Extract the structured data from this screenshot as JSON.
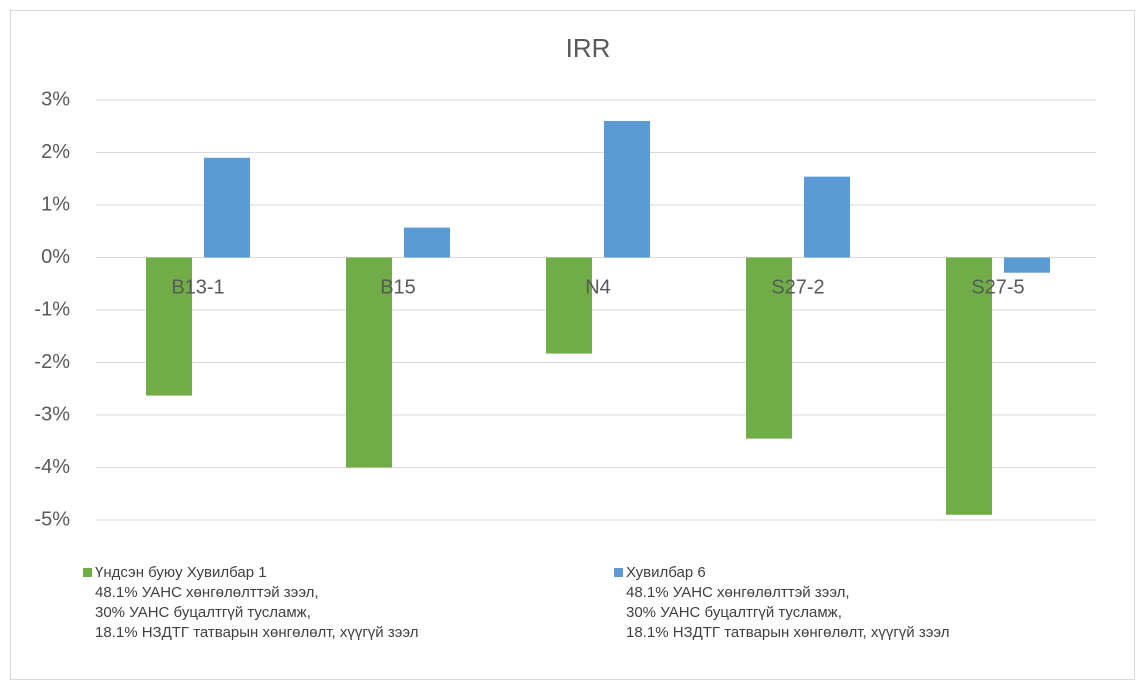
{
  "chart_data": {
    "type": "bar",
    "title": "IRR",
    "categories": [
      "B13-1",
      "B15",
      "N4",
      "S27-2",
      "S27-5"
    ],
    "series": [
      {
        "name": "Үндсэн буюу Хувилбар 1\n48.1% УАНС хөнгөлөлттэй зээл,\n30% УАНС буцалтгүй тусламж,\n18.1%  НЗДТГ татварын хөнгөлөлт, хүүгүй зээл",
        "color": "#70ad47",
        "values": [
          -2.63,
          -4.0,
          -1.83,
          -3.45,
          -4.9
        ]
      },
      {
        "name": "Хувилбар 6\n48.1% УАНС хөнгөлөлттэй зээл,\n30% УАНС буцалтгүй тусламж,\n18.1%  НЗДТГ татварын хөнгөлөлт, хүүгүй зээл",
        "color": "#5b9bd5",
        "values": [
          1.9,
          0.57,
          2.6,
          1.54,
          -0.29
        ]
      }
    ],
    "ylim": [
      -5,
      3
    ],
    "yticks": [
      {
        "value": -5,
        "label": "-5%"
      },
      {
        "value": -4,
        "label": "-4%"
      },
      {
        "value": -3,
        "label": "-3%"
      },
      {
        "value": -2,
        "label": "-2%"
      },
      {
        "value": -1,
        "label": "-1%"
      },
      {
        "value": 0,
        "label": "0%"
      },
      {
        "value": 1,
        "label": "1%"
      },
      {
        "value": 2,
        "label": "2%"
      },
      {
        "value": 3,
        "label": "3%"
      }
    ],
    "grid": true,
    "legend": "bottom"
  }
}
